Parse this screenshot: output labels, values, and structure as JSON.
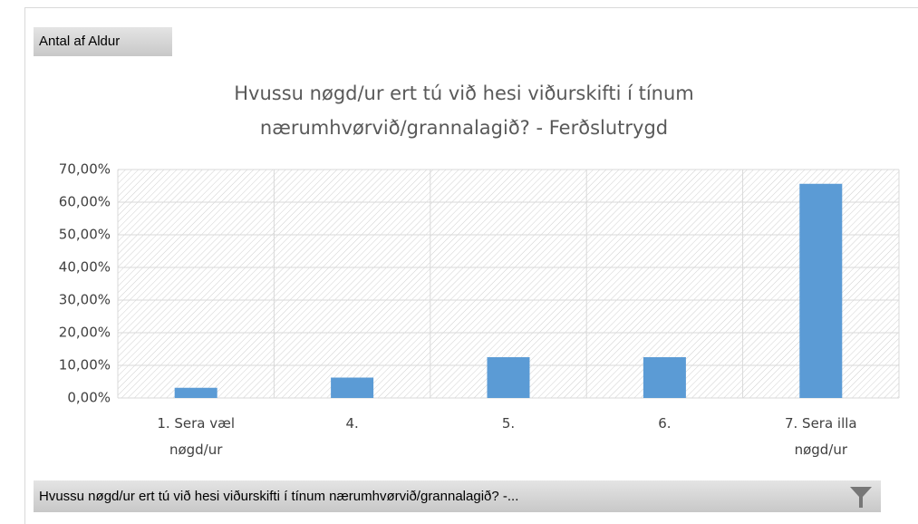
{
  "chart_data": {
    "type": "bar",
    "field_button": "Antal af Aldur",
    "title": "Hvussu nøgd/ur ert tú við hesi viðurskifti í tínum nærumhvørvið/grannalagið? - Ferðslutrygd",
    "categories": [
      "1. Sera væl nøgd/ur",
      "4.",
      "5.",
      "6.",
      "7. Sera illa nøgd/ur"
    ],
    "values": [
      3.125,
      6.25,
      12.5,
      12.5,
      65.625
    ],
    "color": "#5b9bd5",
    "ylim": [
      0,
      70
    ],
    "yticks": [
      {
        "value": 0,
        "label": "0,00%"
      },
      {
        "value": 10,
        "label": "10,00%"
      },
      {
        "value": 20,
        "label": "20,00%"
      },
      {
        "value": 30,
        "label": "30,00%"
      },
      {
        "value": 40,
        "label": "40,00%"
      },
      {
        "value": 50,
        "label": "50,00%"
      },
      {
        "value": 60,
        "label": "60,00%"
      },
      {
        "value": 70,
        "label": "70,00%"
      }
    ],
    "grid": true,
    "axis_button": "Hvussu nøgd/ur ert tú við hesi viðurskifti í tínum nærumhvørvið/grannalagið? -..."
  }
}
